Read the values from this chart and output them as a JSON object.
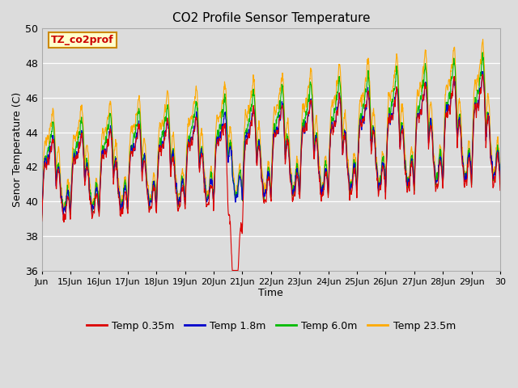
{
  "title": "CO2 Profile Sensor Temperature",
  "xlabel": "Time",
  "ylabel": "Senor Temperature (C)",
  "ylim": [
    36,
    50
  ],
  "xlim_days": [
    14,
    30
  ],
  "bg_color": "#dcdcdc",
  "grid_color": "white",
  "annotation_text": "TZ_co2prof",
  "annotation_fg": "#cc0000",
  "annotation_bg": "#ffffcc",
  "annotation_border": "#cc8800",
  "legend_labels": [
    "Temp 0.35m",
    "Temp 1.8m",
    "Temp 6.0m",
    "Temp 23.5m"
  ],
  "legend_colors": [
    "#dd0000",
    "#0000cc",
    "#00bb00",
    "#ffaa00"
  ],
  "xtick_labels": [
    "Jun",
    "15Jun",
    "16Jun",
    "17Jun",
    "18Jun",
    "19Jun",
    "20Jun",
    "21Jun",
    "22Jun",
    "23Jun",
    "24Jun",
    "25Jun",
    "26Jun",
    "27Jun",
    "28Jun",
    "29Jun",
    "30"
  ],
  "xtick_positions": [
    14,
    15,
    16,
    17,
    18,
    19,
    20,
    21,
    22,
    23,
    24,
    25,
    26,
    27,
    28,
    29,
    30
  ],
  "ytick_positions": [
    36,
    38,
    40,
    42,
    44,
    46,
    48,
    50
  ],
  "linewidth": 0.8
}
